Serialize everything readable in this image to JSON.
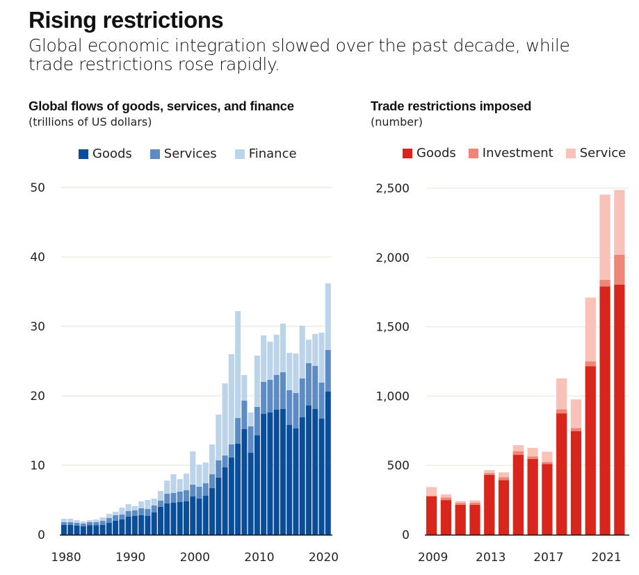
{
  "header": {
    "title": "Rising restrictions",
    "subtitle": "Global economic integration slowed over the past decade, while trade restrictions rose rapidly."
  },
  "chart_data": [
    {
      "type": "bar",
      "stacked": true,
      "title": "Global flows of goods, services, and finance",
      "ylabel": "(trillions of US dollars)",
      "xlabel": "",
      "legend_position": "top",
      "ylim": [
        0,
        50
      ],
      "yticks": [
        0,
        10,
        20,
        30,
        40,
        50
      ],
      "ytick_labels": [
        "0",
        "10",
        "20",
        "30",
        "40",
        "50"
      ],
      "xtick_labels": [
        "1980",
        "1990",
        "2000",
        "2010",
        "2020"
      ],
      "grid": true,
      "categories": [
        1980,
        1981,
        1982,
        1983,
        1984,
        1985,
        1986,
        1987,
        1988,
        1989,
        1990,
        1991,
        1992,
        1993,
        1994,
        1995,
        1996,
        1997,
        1998,
        1999,
        2000,
        2001,
        2002,
        2003,
        2004,
        2005,
        2006,
        2007,
        2008,
        2009,
        2010,
        2011,
        2012,
        2013,
        2014,
        2015,
        2016,
        2017,
        2018,
        2019,
        2020,
        2021
      ],
      "series": [
        {
          "name": "Goods",
          "color": "#0a4d9b",
          "values": [
            1.4,
            1.4,
            1.3,
            1.2,
            1.35,
            1.35,
            1.4,
            1.7,
            2.0,
            2.2,
            2.6,
            2.7,
            2.8,
            2.7,
            3.2,
            4.0,
            4.5,
            4.6,
            4.7,
            4.8,
            5.5,
            5.2,
            5.6,
            6.7,
            8.2,
            9.7,
            11.1,
            13.1,
            15.2,
            11.8,
            14.3,
            17.4,
            17.6,
            18.0,
            18.1,
            15.8,
            15.3,
            16.9,
            18.6,
            18.1,
            16.7,
            20.6
          ]
        },
        {
          "name": "Services",
          "color": "#5d8cc4",
          "values": [
            0.4,
            0.4,
            0.4,
            0.4,
            0.45,
            0.45,
            0.6,
            0.7,
            0.8,
            0.7,
            0.8,
            0.8,
            1.0,
            1.0,
            1.0,
            0.9,
            1.4,
            1.4,
            1.5,
            1.6,
            1.7,
            1.7,
            1.8,
            2.0,
            2.5,
            1.7,
            1.9,
            3.7,
            4.1,
            3.8,
            4.1,
            4.6,
            4.7,
            5.0,
            5.3,
            5.0,
            5.1,
            5.6,
            6.1,
            6.2,
            5.2,
            6.0
          ]
        },
        {
          "name": "Finance",
          "color": "#bcd4ea",
          "values": [
            0.5,
            0.5,
            0.4,
            0.3,
            0.3,
            0.4,
            0.5,
            0.6,
            0.5,
            1.0,
            1.0,
            0.6,
            1.0,
            1.3,
            1.0,
            1.4,
            1.9,
            2.7,
            1.8,
            2.4,
            4.8,
            3.2,
            3.0,
            4.3,
            6.6,
            10.4,
            13.0,
            15.4,
            3.7,
            2.0,
            7.4,
            6.7,
            5.5,
            5.8,
            7.0,
            5.4,
            5.7,
            7.6,
            3.4,
            4.6,
            7.2,
            9.6
          ]
        }
      ]
    },
    {
      "type": "bar",
      "stacked": true,
      "title": "Trade restrictions imposed",
      "ylabel": "(number)",
      "xlabel": "",
      "legend_position": "top",
      "ylim": [
        0,
        2500
      ],
      "yticks": [
        0,
        500,
        1000,
        1500,
        2000,
        2500
      ],
      "ytick_labels": [
        "0",
        "500",
        "1,000",
        "1,500",
        "2,000",
        "2,500"
      ],
      "xtick_labels": [
        "2009",
        "2013",
        "2017",
        "2021"
      ],
      "grid": true,
      "categories": [
        2009,
        2010,
        2011,
        2012,
        2013,
        2014,
        2015,
        2016,
        2017,
        2018,
        2019,
        2020,
        2021,
        2022
      ],
      "series": [
        {
          "name": "Goods",
          "color": "#d9261c",
          "values": [
            277,
            250,
            216,
            216,
            431,
            394,
            576,
            547,
            510,
            876,
            748,
            1215,
            1792,
            1805
          ]
        },
        {
          "name": "Investment",
          "color": "#ee8577",
          "values": [
            5,
            18,
            14,
            16,
            14,
            21,
            27,
            18,
            15,
            29,
            22,
            35,
            47,
            214
          ]
        },
        {
          "name": "Service",
          "color": "#f9c2b8",
          "values": [
            62,
            24,
            13,
            16,
            21,
            35,
            43,
            61,
            74,
            223,
            206,
            461,
            615,
            468
          ]
        }
      ]
    }
  ]
}
